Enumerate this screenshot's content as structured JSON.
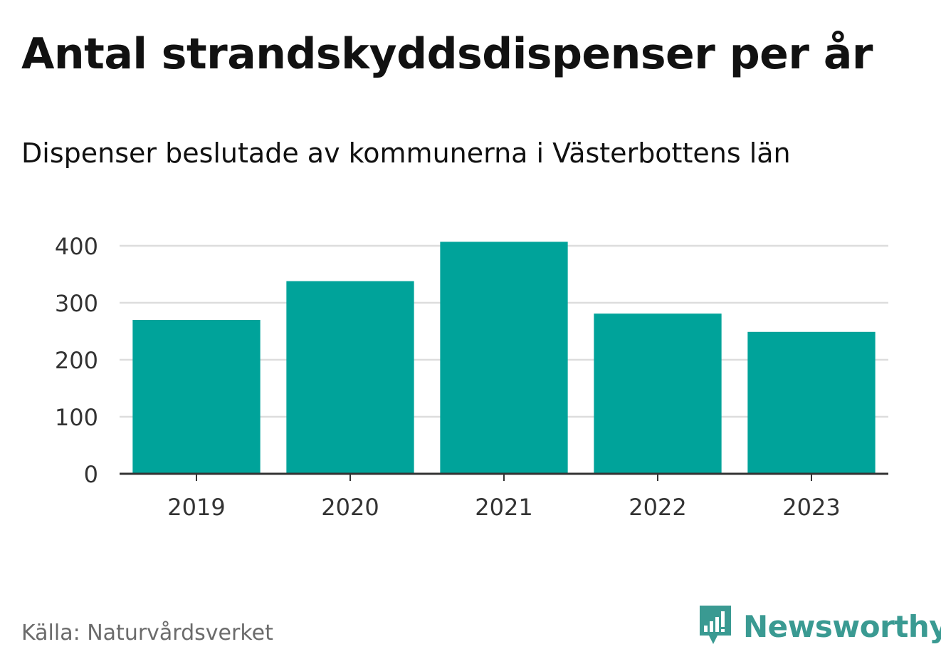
{
  "title": "Antal strandskyddsdispenser per år",
  "subtitle": "Dispenser beslutade av kommunerna i Västerbottens län",
  "source": "Källa: Naturvårdsverket",
  "brand": {
    "name": "Newsworthy",
    "icon": "newsworthy-logo-icon",
    "color": "#3a9a92"
  },
  "chart_data": {
    "type": "bar",
    "title": "Antal strandskyddsdispenser per år",
    "subtitle": "Dispenser beslutade av kommunerna i Västerbottens län",
    "xlabel": "",
    "ylabel": "",
    "categories": [
      "2019",
      "2020",
      "2021",
      "2022",
      "2023"
    ],
    "values": [
      270,
      338,
      407,
      281,
      249
    ],
    "ylim": [
      0,
      400
    ],
    "yticks": [
      0,
      100,
      200,
      300,
      400
    ],
    "grid": true,
    "bar_color": "#00a39a",
    "grid_color": "#dddddd",
    "axis_color": "#333333"
  }
}
